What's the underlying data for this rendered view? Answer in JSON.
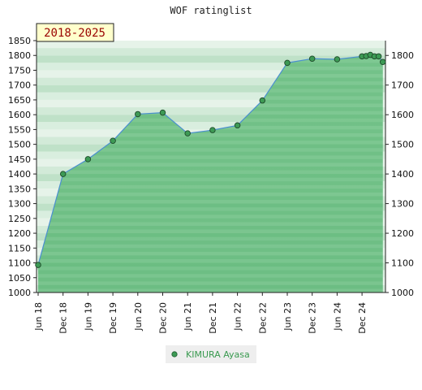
{
  "chart_data": {
    "type": "area",
    "title": "WOF ratinglist",
    "period_label": "2018-2025",
    "xlabel": "",
    "ylabel": "",
    "y_left_ticks": [
      "1850",
      "1800",
      "1750",
      "1700",
      "1650",
      "1600",
      "1550",
      "1500",
      "1450",
      "1400",
      "1350",
      "1300",
      "1250",
      "1200",
      "1150",
      "1100",
      "1050",
      "1000"
    ],
    "y_right_ticks": [
      "1800",
      "1700",
      "1600",
      "1500",
      "1400",
      "1300",
      "1200",
      "1100",
      "1000"
    ],
    "x_ticks": [
      "Jun 18",
      "Dec 18",
      "Jun 19",
      "Dec 19",
      "Jun 20",
      "Dec 20",
      "Jun 21",
      "Dec 21",
      "Jun 22",
      "Dec 22",
      "Jun 23",
      "Dec 23",
      "Jun 24",
      "Dec 24"
    ],
    "ylim": [
      1000,
      1850
    ],
    "grid": true,
    "legend_position": "bottom-center",
    "series": [
      {
        "name": "KIMURA Ayasa",
        "points": [
          {
            "x": "Jun 18",
            "y": 1093
          },
          {
            "x": "Dec 18",
            "y": 1400
          },
          {
            "x": "Jun 19",
            "y": 1450
          },
          {
            "x": "Dec 19",
            "y": 1512
          },
          {
            "x": "Jun 20",
            "y": 1602
          },
          {
            "x": "Dec 20",
            "y": 1607
          },
          {
            "x": "Jun 21",
            "y": 1537
          },
          {
            "x": "Dec 21",
            "y": 1548
          },
          {
            "x": "Jun 22",
            "y": 1564
          },
          {
            "x": "Dec 22",
            "y": 1648
          },
          {
            "x": "Jun 23",
            "y": 1775
          },
          {
            "x": "Dec 23",
            "y": 1789
          },
          {
            "x": "Jun 24",
            "y": 1787
          },
          {
            "x": "Dec 24",
            "y": 1797
          },
          {
            "x": "Jan 25",
            "y": 1798
          },
          {
            "x": "Feb 25",
            "y": 1802
          },
          {
            "x": "Mar 25",
            "y": 1797
          },
          {
            "x": "Apr 25",
            "y": 1797
          },
          {
            "x": "May 25",
            "y": 1778
          }
        ]
      }
    ],
    "colors": {
      "fill": "#6dbf82",
      "line": "#4a8fd0",
      "marker": "#3d9a55",
      "badge_bg": "#ffffcc",
      "legend_text": "#3a9a50"
    }
  }
}
